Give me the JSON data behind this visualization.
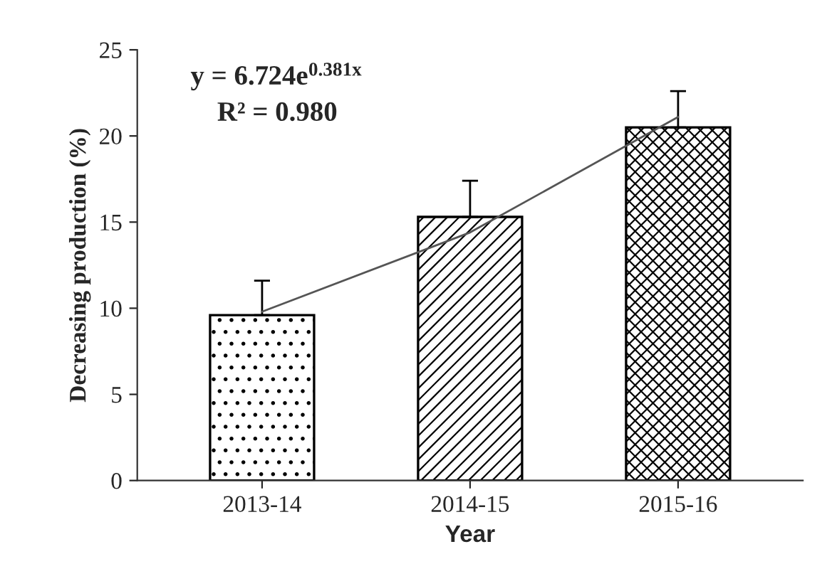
{
  "chart_data": {
    "type": "bar",
    "xlabel": "Year",
    "ylabel": "Decreasing production (%)",
    "categories": [
      "2013-14",
      "2014-15",
      "2015-16"
    ],
    "series": [
      {
        "color": "#000000",
        "values": [
          9.6,
          15.3,
          20.5
        ],
        "errors": [
          [
            9.6,
            11.6
          ],
          [
            15.3,
            17.4
          ],
          [
            20.5,
            22.6
          ]
        ]
      },
      {
        "type": "line",
        "color": "#555555",
        "values": [
          9.8,
          14.4,
          21.1
        ],
        "marker": "none"
      }
    ],
    "ylim": [
      0,
      25
    ],
    "yticks": [
      0,
      5,
      10,
      15,
      20,
      25
    ],
    "grid": false,
    "legend": false,
    "annotations": [
      "y = 6.724e$^{0.381x}$",
      "R² = 0.980"
    ]
  }
}
